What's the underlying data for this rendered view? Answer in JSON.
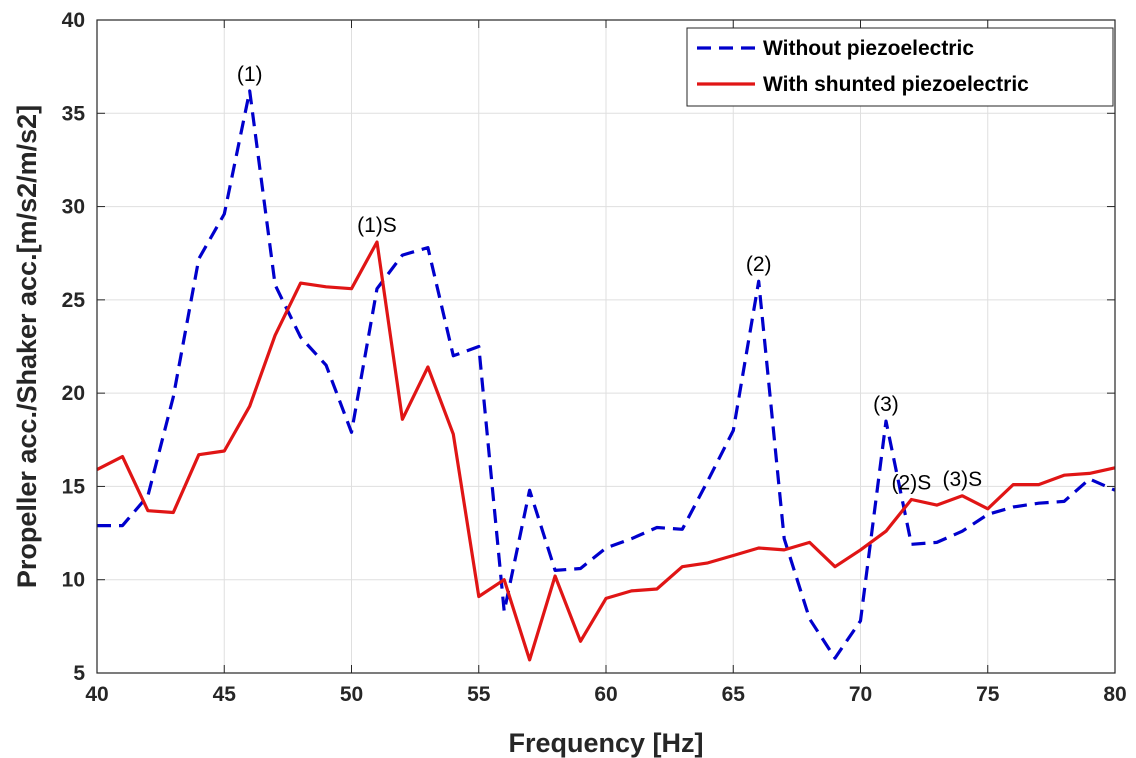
{
  "chart_data": {
    "type": "line",
    "xlabel": "Frequency [Hz]",
    "ylabel": "Propeller acc./Shaker acc.[m/s2/m/s2]",
    "xlim": [
      40,
      80
    ],
    "ylim": [
      5,
      40
    ],
    "xticks": [
      40,
      45,
      50,
      55,
      60,
      65,
      70,
      75,
      80
    ],
    "yticks": [
      5,
      10,
      15,
      20,
      25,
      30,
      35,
      40
    ],
    "grid": true,
    "legend_position": "top-right",
    "series": [
      {
        "name": "Without piezoelectric",
        "color": "#0000cc",
        "style": "dashed",
        "x": [
          40,
          41,
          42,
          43,
          44,
          45,
          46,
          47,
          48,
          49,
          50,
          51,
          52,
          53,
          54,
          55,
          56,
          57,
          58,
          59,
          60,
          61,
          62,
          63,
          64,
          65,
          66,
          67,
          68,
          69,
          70,
          71,
          72,
          73,
          74,
          75,
          76,
          77,
          78,
          79,
          80
        ],
        "y": [
          12.9,
          12.9,
          14.5,
          19.8,
          27.2,
          29.6,
          36.2,
          25.8,
          23.0,
          21.5,
          17.9,
          25.6,
          27.4,
          27.8,
          22.0,
          22.5,
          8.3,
          14.8,
          10.5,
          10.6,
          11.7,
          12.2,
          12.8,
          12.7,
          15.3,
          18.0,
          26.0,
          12.2,
          7.9,
          5.8,
          7.8,
          18.5,
          11.9,
          12.0,
          12.6,
          13.5,
          13.9,
          14.1,
          14.2,
          15.4,
          14.8
        ]
      },
      {
        "name": "With shunted piezoelectric",
        "color": "#e01515",
        "style": "solid",
        "x": [
          40,
          41,
          42,
          43,
          44,
          45,
          46,
          47,
          48,
          49,
          50,
          51,
          52,
          53,
          54,
          55,
          56,
          57,
          58,
          59,
          60,
          61,
          62,
          63,
          64,
          65,
          66,
          67,
          68,
          69,
          70,
          71,
          72,
          73,
          74,
          75,
          76,
          77,
          78,
          79,
          80
        ],
        "y": [
          15.9,
          16.6,
          13.7,
          13.6,
          16.7,
          16.9,
          19.3,
          23.1,
          25.9,
          25.7,
          25.6,
          28.1,
          18.6,
          21.4,
          17.8,
          9.1,
          10.0,
          5.7,
          10.2,
          6.7,
          9.0,
          9.4,
          9.5,
          10.7,
          10.9,
          11.3,
          11.7,
          11.6,
          12.0,
          10.7,
          11.6,
          12.6,
          14.3,
          14.0,
          14.5,
          13.8,
          15.1,
          15.1,
          15.6,
          15.7,
          16.0
        ]
      }
    ],
    "annotations": [
      {
        "text": "(1)",
        "x": 46,
        "y": 36.2
      },
      {
        "text": "(1)S",
        "x": 51,
        "y": 28.1
      },
      {
        "text": "(2)",
        "x": 66,
        "y": 26.0
      },
      {
        "text": "(3)",
        "x": 71,
        "y": 18.5
      },
      {
        "text": "(2)S",
        "x": 72,
        "y": 14.3
      },
      {
        "text": "(3)S",
        "x": 74,
        "y": 14.5
      }
    ]
  }
}
